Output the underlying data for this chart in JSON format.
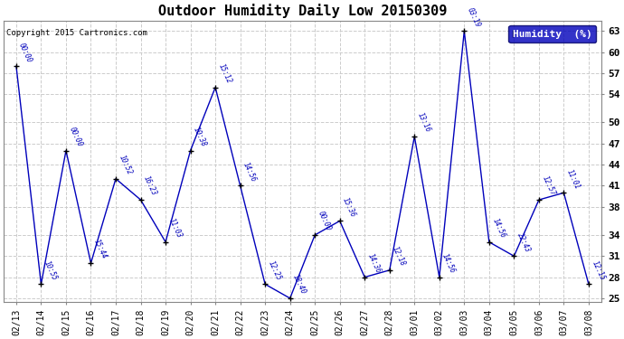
{
  "title": "Outdoor Humidity Daily Low 20150309",
  "legend_label": "Humidity  (%)",
  "copyright": "Copyright 2015 Cartronics.com",
  "background_color": "#ffffff",
  "plot_bg_color": "#ffffff",
  "line_color": "#0000bb",
  "grid_color": "#cccccc",
  "ylim": [
    24.5,
    64.5
  ],
  "yticks": [
    25,
    28,
    31,
    34,
    38,
    41,
    44,
    47,
    50,
    54,
    57,
    60,
    63
  ],
  "ytick_labels": [
    "25",
    "28",
    "31",
    "34",
    "38",
    "41",
    "44",
    "47",
    "50",
    "54",
    "57",
    "60",
    "63"
  ],
  "data": [
    {
      "date": "02/13",
      "value": 58,
      "time": "00:00"
    },
    {
      "date": "02/14",
      "value": 27,
      "time": "10:55"
    },
    {
      "date": "02/15",
      "value": 46,
      "time": "00:00"
    },
    {
      "date": "02/16",
      "value": 30,
      "time": "15:44"
    },
    {
      "date": "02/17",
      "value": 42,
      "time": "10:52"
    },
    {
      "date": "02/18",
      "value": 39,
      "time": "16:23"
    },
    {
      "date": "02/19",
      "value": 33,
      "time": "11:03"
    },
    {
      "date": "02/20",
      "value": 46,
      "time": "10:38"
    },
    {
      "date": "02/21",
      "value": 55,
      "time": "15:12"
    },
    {
      "date": "02/22",
      "value": 41,
      "time": "14:56"
    },
    {
      "date": "02/23",
      "value": 27,
      "time": "12:25"
    },
    {
      "date": "02/24",
      "value": 25,
      "time": "18:40"
    },
    {
      "date": "02/25",
      "value": 34,
      "time": "00:00"
    },
    {
      "date": "02/26",
      "value": 36,
      "time": "15:36"
    },
    {
      "date": "02/27",
      "value": 28,
      "time": "14:36"
    },
    {
      "date": "02/28",
      "value": 29,
      "time": "12:18"
    },
    {
      "date": "03/01",
      "value": 48,
      "time": "13:16"
    },
    {
      "date": "03/02",
      "value": 28,
      "time": "14:56"
    },
    {
      "date": "03/03",
      "value": 63,
      "time": "03:19"
    },
    {
      "date": "03/04",
      "value": 33,
      "time": "14:56"
    },
    {
      "date": "03/05",
      "value": 31,
      "time": "22:43"
    },
    {
      "date": "03/06",
      "value": 39,
      "time": "12:57"
    },
    {
      "date": "03/07",
      "value": 40,
      "time": "11:01"
    },
    {
      "date": "03/08",
      "value": 27,
      "time": "12:15"
    }
  ]
}
